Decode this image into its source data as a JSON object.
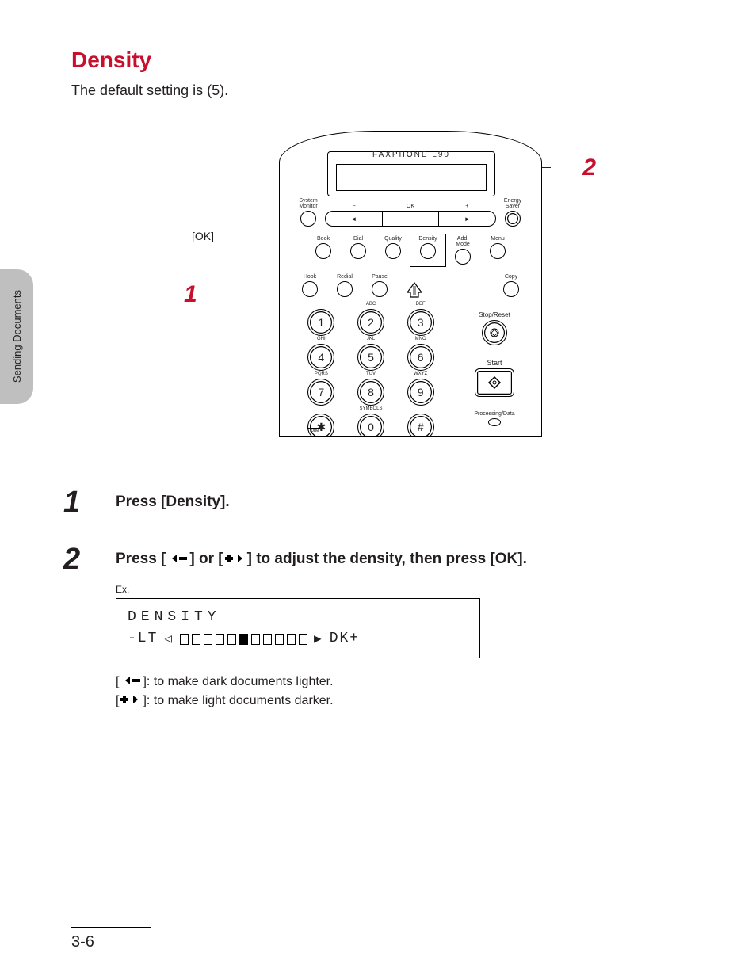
{
  "sidebar_label": "Sending Documents",
  "section_title": "Density",
  "intro_text": "The default setting is (5).",
  "figure": {
    "product_name": "FAXPHONE L90",
    "ok_label": "[OK]",
    "callout_1": "1",
    "callout_2": "2",
    "top_row": {
      "left_label": "System\nMonitor",
      "ok_labels": {
        "minus": "−",
        "ok": "OK",
        "plus": "+"
      },
      "ok_arrows": {
        "left": "◄",
        "right": "►"
      },
      "right_label": "Energy\nSaver"
    },
    "mode_row": [
      "Book",
      "Dial",
      "Quality",
      "Density",
      "Add.\nMode",
      "Menu"
    ],
    "sub_row": {
      "left": [
        "Hook",
        "Redial",
        "Pause"
      ],
      "right": [
        "Copy"
      ]
    },
    "keypad": [
      {
        "n": "1",
        "l": ""
      },
      {
        "n": "2",
        "l": "ABC"
      },
      {
        "n": "3",
        "l": "DEF"
      },
      {
        "n": "4",
        "l": "GHI"
      },
      {
        "n": "5",
        "l": "JKL"
      },
      {
        "n": "6",
        "l": "MNO"
      },
      {
        "n": "7",
        "l": "PQRS"
      },
      {
        "n": "8",
        "l": "TUV"
      },
      {
        "n": "9",
        "l": "WXYZ"
      },
      {
        "n": "✱",
        "l": ""
      },
      {
        "n": "0",
        "l": "SYMBOLS"
      },
      {
        "n": "#",
        "l": ""
      }
    ],
    "tone_label": "Tone",
    "right_col": {
      "stop_label": "Stop/Reset",
      "start_label": "Start",
      "proc_label": "Processing/Data"
    }
  },
  "steps": {
    "s1": {
      "num": "1",
      "text": "Press [Density]."
    },
    "s2": {
      "num": "2",
      "text_before": "Press [",
      "text_mid": "] or [",
      "text_after": "] to adjust the density, then press [OK].",
      "ex_label": "Ex.",
      "display_line1": "DENSITY",
      "display_lt": "-LT",
      "display_dk": "DK+",
      "density_slots": 11,
      "density_filled_index": 5,
      "note1_before": "[",
      "note1_after": "]: to make dark documents lighter.",
      "note2_before": "[",
      "note2_after": "]: to make light documents darker."
    }
  },
  "page_number": "3-6"
}
